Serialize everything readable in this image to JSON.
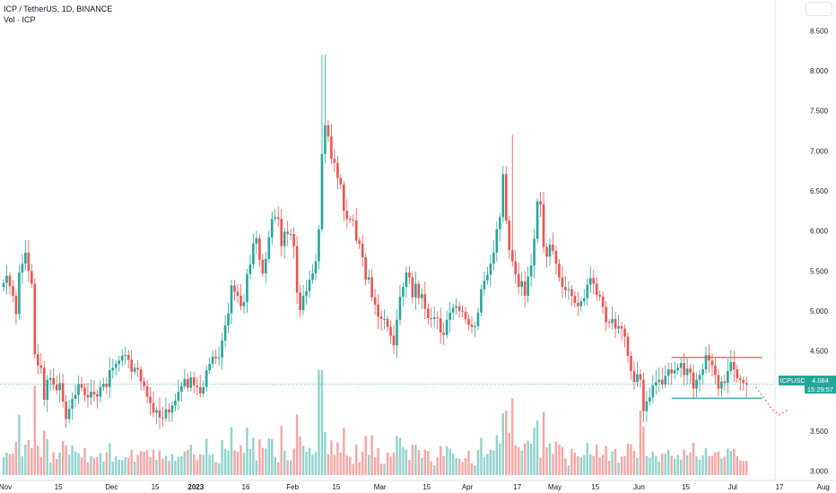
{
  "header": {
    "symbol_title": "ICP / TetherUS, 1D, BINANCE",
    "volume_label": "Vol · ICP"
  },
  "price_label": {
    "ticker": "ICPUSDT",
    "price": "4.084",
    "countdown": "15:29:57"
  },
  "colors": {
    "up": "#26a69a",
    "down": "#ef5350",
    "volume_up": "#8fd3cc",
    "volume_down": "#f7a5a4",
    "resistance_line": "#ef5350",
    "support_line": "#26a69a",
    "projection": "#ef5350"
  },
  "chart_data": {
    "type": "candlestick",
    "title": "ICP / TetherUS, 1D, BINANCE",
    "x_tick_labels": [
      "Nov",
      "15",
      "Dec",
      "15",
      "2023",
      "16",
      "Feb",
      "15",
      "Mar",
      "15",
      "Apr",
      "17",
      "May",
      "15",
      "Jun",
      "15",
      "Jul",
      "17",
      "Aug"
    ],
    "y_tick_labels": [
      "3.000",
      "3.500",
      "4.000",
      "4.500",
      "5.000",
      "5.500",
      "6.000",
      "6.500",
      "7.000",
      "7.500",
      "8.000",
      "8.500"
    ],
    "ylim": [
      2.95,
      8.75
    ],
    "current_price": 4.084,
    "closes": [
      5.35,
      5.44,
      5.31,
      5.19,
      4.96,
      5.48,
      5.59,
      5.73,
      5.5,
      5.34,
      4.46,
      4.32,
      4.29,
      3.89,
      4.14,
      4.16,
      4.08,
      4.01,
      4.1,
      3.87,
      3.65,
      3.78,
      3.9,
      3.95,
      4.09,
      4.04,
      3.95,
      3.92,
      3.99,
      3.96,
      3.93,
      4.05,
      4.09,
      4.05,
      4.26,
      4.29,
      4.34,
      4.38,
      4.44,
      4.45,
      4.39,
      4.24,
      4.29,
      4.27,
      4.12,
      4.06,
      3.93,
      3.85,
      3.73,
      3.76,
      3.67,
      3.66,
      3.77,
      3.73,
      3.82,
      3.88,
      3.99,
      4.06,
      4.15,
      4.04,
      4.17,
      4.07,
      4.05,
      3.97,
      4.05,
      4.26,
      4.34,
      4.43,
      4.41,
      4.42,
      4.63,
      4.82,
      4.97,
      5.32,
      5.24,
      5.19,
      5.06,
      5.11,
      5.46,
      5.58,
      5.84,
      5.91,
      5.64,
      5.47,
      5.65,
      5.92,
      6.15,
      6.17,
      6.15,
      5.81,
      5.99,
      5.96,
      5.96,
      5.81,
      5.23,
      5.01,
      5.19,
      5.25,
      5.39,
      5.47,
      5.62,
      6.02,
      6.96,
      7.32,
      7.18,
      6.9,
      6.85,
      6.66,
      6.58,
      6.25,
      6.15,
      6.14,
      6.13,
      5.88,
      5.84,
      5.67,
      5.39,
      5.42,
      5.17,
      5.08,
      4.93,
      4.9,
      4.9,
      4.8,
      4.69,
      4.57,
      4.89,
      5.18,
      5.3,
      5.48,
      5.42,
      5.17,
      5.34,
      5.16,
      5.21,
      5.03,
      4.91,
      4.9,
      4.92,
      4.91,
      4.73,
      4.7,
      4.89,
      4.98,
      5.04,
      5.06,
      5.0,
      4.99,
      4.9,
      4.83,
      4.8,
      4.81,
      4.98,
      5.27,
      5.38,
      5.45,
      5.59,
      5.73,
      6.02,
      6.17,
      6.71,
      6.13,
      5.76,
      5.62,
      5.46,
      5.3,
      5.37,
      5.19,
      5.43,
      5.57,
      5.9,
      6.37,
      6.33,
      5.8,
      5.68,
      5.83,
      5.75,
      5.59,
      5.42,
      5.3,
      5.26,
      5.27,
      5.19,
      5.1,
      5.06,
      5.12,
      5.16,
      5.33,
      5.41,
      5.34,
      5.2,
      5.18,
      5.05,
      4.86,
      4.85,
      4.9,
      4.78,
      4.81,
      4.78,
      4.68,
      4.44,
      4.25,
      4.11,
      4.21,
      4.14,
      3.75,
      3.87,
      3.92,
      4.07,
      4.11,
      4.14,
      4.08,
      4.19,
      4.27,
      4.22,
      4.26,
      4.29,
      4.35,
      4.2,
      4.28,
      4.23,
      4.03,
      4.14,
      4.2,
      4.27,
      4.45,
      4.38,
      4.32,
      4.2,
      4.03,
      4.12,
      4.1,
      4.25,
      4.36,
      4.27,
      4.16,
      4.14,
      4.1,
      4.08
    ],
    "resistance_level": 4.42,
    "support_level": 3.91,
    "projection": [
      4.05,
      3.92,
      3.78,
      3.7
    ]
  }
}
